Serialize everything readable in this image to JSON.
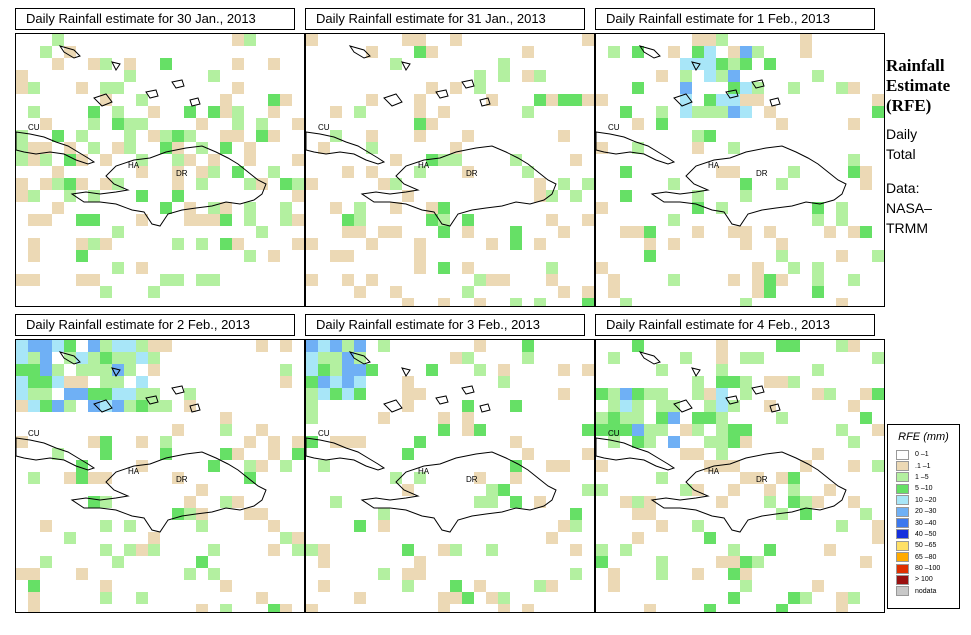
{
  "panels": [
    {
      "title": "Daily Rainfall estimate for  30 Jan., 2013",
      "seed": 11,
      "bias": "mid"
    },
    {
      "title": "Daily Rainfall estimate for  31 Jan., 2013",
      "seed": 23,
      "bias": "low"
    },
    {
      "title": "Daily Rainfall estimate for  1 Feb., 2013",
      "seed": 37,
      "bias": "north"
    },
    {
      "title": "Daily Rainfall estimate for  2 Feb., 2013",
      "seed": 41,
      "bias": "nw"
    },
    {
      "title": "Daily Rainfall estimate for  3 Feb., 2013",
      "seed": 53,
      "bias": "west"
    },
    {
      "title": "Daily Rainfall estimate for  4 Feb., 2013",
      "seed": 67,
      "bias": "nnorth"
    }
  ],
  "map_labels": {
    "cuba": "CU",
    "haiti": "HA",
    "dominican_republic": "DR"
  },
  "side": {
    "title_line1": "Rainfall",
    "title_line2": "Estimate",
    "title_line3": "(RFE)",
    "daily": "Daily",
    "total": "Total",
    "data_label": "Data:",
    "source1": "NASA–",
    "source2": "TRMM"
  },
  "legend": {
    "title": "RFE (mm)",
    "items": [
      {
        "label": "0 –1",
        "color": "#ffffff"
      },
      {
        "label": ".1 –1",
        "color": "#ecd9b5"
      },
      {
        "label": "1 –5",
        "color": "#b3f0a0"
      },
      {
        "label": "5 –10",
        "color": "#66e066"
      },
      {
        "label": "10 –20",
        "color": "#a8e6f8"
      },
      {
        "label": "20 –30",
        "color": "#6fb0f5"
      },
      {
        "label": "30 –40",
        "color": "#3c78ee"
      },
      {
        "label": "40 –50",
        "color": "#1530dd"
      },
      {
        "label": "50 –65",
        "color": "#ffe066"
      },
      {
        "label": "65 –80",
        "color": "#ffaa00"
      },
      {
        "label": "80 –100",
        "color": "#e03000"
      },
      {
        "label": "> 100",
        "color": "#9a1010"
      },
      {
        "label": "nodata",
        "color": "#c8c8c8"
      }
    ]
  }
}
